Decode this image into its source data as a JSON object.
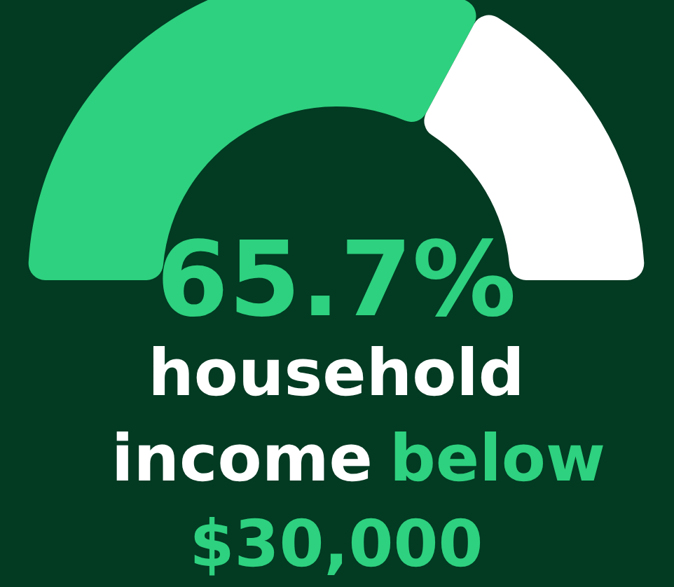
{
  "chart_data": {
    "type": "donut",
    "categories": [
      null,
      null
    ],
    "values": [
      65.7,
      34.3
    ],
    "colors": [
      "#2ed17f",
      "#ffffff"
    ],
    "value_labels": [
      "65.7%",
      null
    ],
    "annotations": [
      "household income",
      "below $30,000"
    ]
  }
}
